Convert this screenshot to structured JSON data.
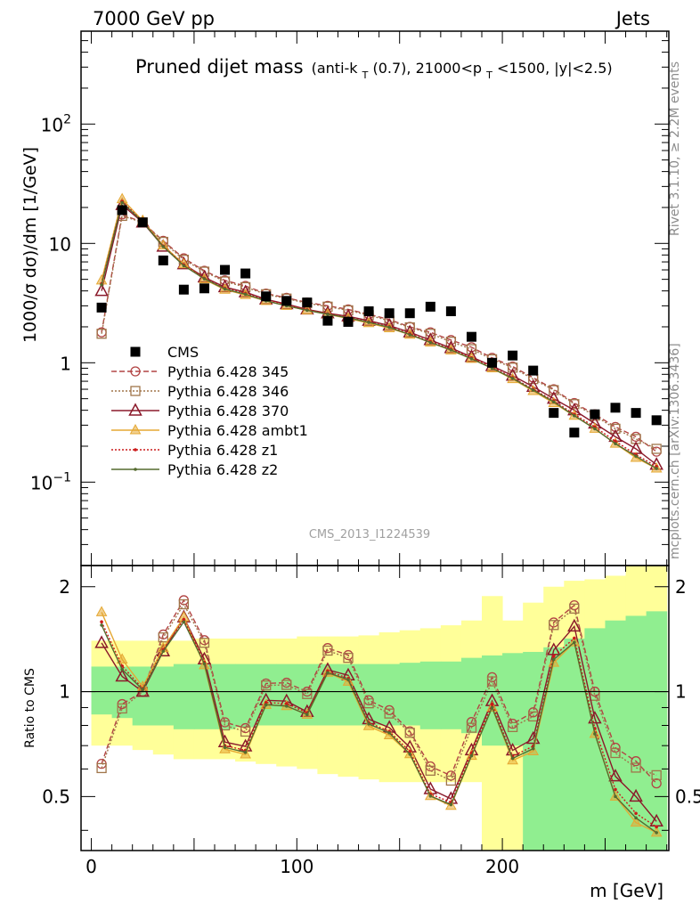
{
  "header": {
    "left": "7000 GeV pp",
    "right": "Jets"
  },
  "title": {
    "main": "Pruned dijet mass",
    "cond_pre": "(anti-k",
    "cond_sub1": "T",
    "cond_mid": "(0.7), 21000<p",
    "cond_sub2": "T",
    "cond_post": "<1500, |y|<2.5)"
  },
  "side_labels": {
    "rivet": "Rivet 3.1.10, ≥ 2.2M events",
    "mcplots": "mcplots.cern.ch [arXiv:1306.3436]"
  },
  "watermark": "CMS_2013_I1224539",
  "axes": {
    "ylabel_main": "1000/σ dσ)/dm [1/GeV]",
    "ylabel_ratio": "Ratio to CMS",
    "xlabel": "m [GeV]",
    "x_ticks": [
      "0",
      "100",
      "200"
    ],
    "y_ticks_main": [
      "10^-1",
      "1",
      "10",
      "10^2"
    ],
    "y_ticks_ratio": [
      "0.5",
      "1",
      "2"
    ]
  },
  "chart_data": {
    "type": "scatter",
    "x": [
      5,
      15,
      25,
      35,
      45,
      55,
      65,
      75,
      85,
      95,
      105,
      115,
      125,
      135,
      145,
      155,
      165,
      175,
      185,
      195,
      205,
      215,
      225,
      235,
      245,
      255,
      265,
      275
    ],
    "xlim": [
      -5,
      281
    ],
    "ylim_main": [
      0.02,
      600
    ],
    "yscale_main": "log",
    "ylim_ratio": [
      0.35,
      2.3
    ],
    "yscale_ratio": "log",
    "legend_position": "left",
    "data": {
      "name": "CMS",
      "color": "#000000",
      "values": [
        2.9,
        19,
        15,
        7.2,
        4.1,
        4.2,
        6.0,
        5.6,
        3.6,
        3.3,
        3.2,
        2.25,
        2.2,
        2.7,
        2.6,
        2.6,
        2.95,
        2.7,
        1.65,
        1.0,
        1.15,
        0.86,
        0.38,
        0.26,
        0.37,
        0.42,
        0.38,
        0.33
      ]
    },
    "bands": {
      "inner_color": "#90ee90",
      "outer_color": "#ffff99",
      "inner_lo": [
        0.86,
        0.84,
        0.8,
        0.8,
        0.78,
        0.78,
        0.78,
        0.79,
        0.8,
        0.8,
        0.8,
        0.8,
        0.8,
        0.8,
        0.8,
        0.8,
        0.78,
        0.78,
        0.76,
        0.7,
        0.7,
        0.35,
        0.35,
        0.35,
        0.35,
        0.35,
        0.35,
        0.35
      ],
      "inner_hi": [
        1.18,
        1.18,
        1.18,
        1.18,
        1.2,
        1.2,
        1.2,
        1.2,
        1.2,
        1.2,
        1.2,
        1.2,
        1.2,
        1.2,
        1.2,
        1.21,
        1.22,
        1.22,
        1.25,
        1.27,
        1.29,
        1.3,
        1.34,
        1.42,
        1.52,
        1.6,
        1.65,
        1.7
      ],
      "outer_lo": [
        0.7,
        0.7,
        0.68,
        0.66,
        0.64,
        0.64,
        0.64,
        0.63,
        0.62,
        0.61,
        0.6,
        0.58,
        0.57,
        0.56,
        0.55,
        0.55,
        0.55,
        0.55,
        0.55,
        0.35,
        0.35,
        0.35,
        0.35,
        0.35,
        0.35,
        0.35,
        0.35,
        0.35
      ],
      "outer_hi": [
        1.4,
        1.4,
        1.4,
        1.4,
        1.4,
        1.42,
        1.42,
        1.42,
        1.42,
        1.42,
        1.44,
        1.44,
        1.44,
        1.45,
        1.48,
        1.5,
        1.52,
        1.55,
        1.6,
        1.88,
        1.6,
        1.8,
        2.0,
        2.08,
        2.1,
        2.15,
        2.4,
        2.4
      ]
    },
    "series": [
      {
        "name": "Pythia 6.428 345",
        "color": "#b24444",
        "dash": "6,3",
        "marker": "circle",
        "values": [
          1.8,
          17.5,
          15.0,
          10.5,
          7.5,
          5.9,
          4.9,
          4.4,
          3.8,
          3.5,
          3.2,
          3.0,
          2.8,
          2.55,
          2.3,
          2.0,
          1.8,
          1.55,
          1.35,
          1.1,
          0.93,
          0.75,
          0.6,
          0.46,
          0.37,
          0.29,
          0.24,
          0.18
        ]
      },
      {
        "name": "Pythia 6.428 346",
        "color": "#a0754a",
        "dash": "2,2",
        "marker": "square",
        "values": [
          1.75,
          17.0,
          15.0,
          10.3,
          7.3,
          5.8,
          4.8,
          4.3,
          3.75,
          3.45,
          3.15,
          2.95,
          2.75,
          2.5,
          2.25,
          1.98,
          1.75,
          1.5,
          1.3,
          1.07,
          0.91,
          0.73,
          0.59,
          0.45,
          0.36,
          0.28,
          0.23,
          0.19
        ]
      },
      {
        "name": "Pythia 6.428 370",
        "color": "#8b1a2b",
        "dash": "",
        "marker": "triangle",
        "values": [
          4.0,
          21.0,
          15.0,
          9.4,
          6.7,
          5.2,
          4.3,
          3.9,
          3.4,
          3.1,
          2.8,
          2.6,
          2.45,
          2.25,
          2.05,
          1.8,
          1.55,
          1.33,
          1.12,
          0.94,
          0.78,
          0.63,
          0.5,
          0.4,
          0.31,
          0.24,
          0.19,
          0.14
        ]
      },
      {
        "name": "Pythia 6.428 ambt1",
        "color": "#e5a833",
        "dash": "",
        "marker": "triangle-filled",
        "values": [
          4.9,
          23.5,
          15.5,
          9.6,
          6.7,
          5.0,
          4.1,
          3.7,
          3.3,
          3.0,
          2.75,
          2.55,
          2.35,
          2.15,
          1.95,
          1.72,
          1.48,
          1.27,
          1.08,
          0.9,
          0.73,
          0.58,
          0.46,
          0.36,
          0.28,
          0.21,
          0.16,
          0.13
        ]
      },
      {
        "name": "Pythia 6.428 z1",
        "color": "#cc1a1a",
        "dash": "2,2",
        "marker": "dot",
        "values": [
          4.6,
          22.5,
          15.3,
          9.5,
          6.6,
          5.1,
          4.2,
          3.8,
          3.35,
          3.05,
          2.78,
          2.58,
          2.4,
          2.2,
          2.0,
          1.75,
          1.5,
          1.3,
          1.1,
          0.92,
          0.75,
          0.6,
          0.48,
          0.37,
          0.29,
          0.22,
          0.17,
          0.135
        ]
      },
      {
        "name": "Pythia 6.428 z2",
        "color": "#556b2f",
        "dash": "",
        "marker": "dot",
        "values": [
          4.5,
          22.0,
          15.2,
          9.4,
          6.5,
          5.05,
          4.15,
          3.75,
          3.3,
          3.0,
          2.75,
          2.55,
          2.38,
          2.18,
          1.98,
          1.72,
          1.48,
          1.28,
          1.08,
          0.9,
          0.74,
          0.59,
          0.47,
          0.36,
          0.28,
          0.21,
          0.165,
          0.13
        ]
      }
    ]
  }
}
